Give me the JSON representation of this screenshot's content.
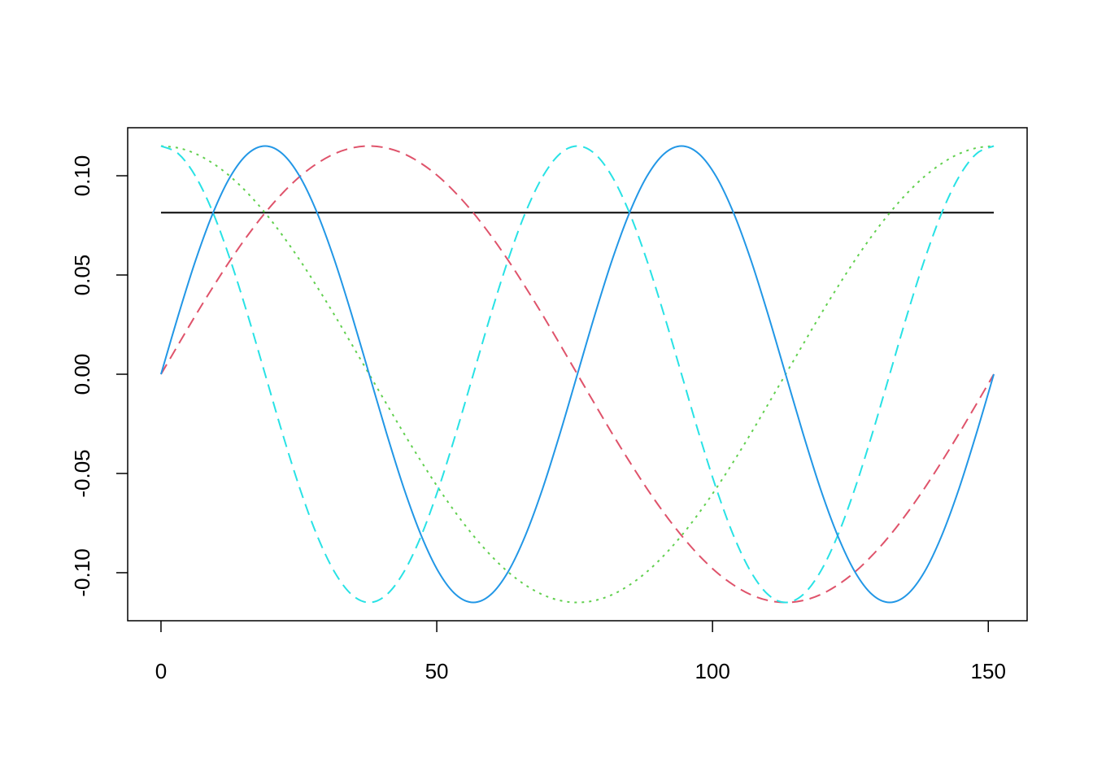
{
  "chart_data": {
    "type": "line",
    "x": [
      0,
      3.15,
      6.29,
      9.44,
      12.58,
      15.73,
      18.88,
      22.02,
      25.17,
      28.31,
      31.46,
      34.6,
      37.75,
      40.9,
      44.04,
      47.19,
      50.33,
      53.48,
      56.63,
      59.77,
      62.92,
      66.06,
      69.21,
      72.35,
      75.5,
      78.65,
      81.79,
      84.94,
      88.08,
      91.23,
      94.38,
      97.52,
      100.67,
      103.81,
      106.96,
      110.1,
      113.25,
      116.4,
      119.54,
      122.69,
      125.83,
      128.98,
      132.13,
      135.27,
      138.42,
      141.56,
      144.71,
      147.85,
      151
    ],
    "series": [
      {
        "color": "#000000",
        "dash": "solid",
        "values": [
          0.0814,
          0.0814,
          0.0814,
          0.0814,
          0.0814,
          0.0814,
          0.0814,
          0.0814,
          0.0814,
          0.0814,
          0.0814,
          0.0814,
          0.0814,
          0.0814,
          0.0814,
          0.0814,
          0.0814,
          0.0814,
          0.0814,
          0.0814,
          0.0814,
          0.0814,
          0.0814,
          0.0814,
          0.0814,
          0.0814,
          0.0814,
          0.0814,
          0.0814,
          0.0814,
          0.0814,
          0.0814,
          0.0814,
          0.0814,
          0.0814,
          0.0814,
          0.0814,
          0.0814,
          0.0814,
          0.0814,
          0.0814,
          0.0814,
          0.0814,
          0.0814,
          0.0814,
          0.0814,
          0.0814,
          0.0814,
          0.0814
        ]
      },
      {
        "color": "#DF536B",
        "dash": "dashed",
        "values": [
          0,
          0.015,
          0.0298,
          0.044,
          0.0575,
          0.07,
          0.0813,
          0.0912,
          0.0996,
          0.1062,
          0.1111,
          0.114,
          0.115,
          0.114,
          0.1111,
          0.1062,
          0.0996,
          0.0912,
          0.0813,
          0.07,
          0.0575,
          0.044,
          0.0298,
          0.015,
          0,
          -0.015,
          -0.0298,
          -0.044,
          -0.0575,
          -0.07,
          -0.0813,
          -0.0912,
          -0.0996,
          -0.1062,
          -0.1111,
          -0.114,
          -0.115,
          -0.114,
          -0.1111,
          -0.1062,
          -0.0996,
          -0.0912,
          -0.0813,
          -0.07,
          -0.0575,
          -0.044,
          -0.0298,
          -0.015,
          0
        ]
      },
      {
        "color": "#61D04F",
        "dash": "dotted",
        "values": [
          0.115,
          0.114,
          0.1111,
          0.1062,
          0.0996,
          0.0912,
          0.0813,
          0.07,
          0.0575,
          0.044,
          0.0298,
          0.015,
          0,
          -0.015,
          -0.0298,
          -0.044,
          -0.0575,
          -0.07,
          -0.0813,
          -0.0912,
          -0.0996,
          -0.1062,
          -0.1111,
          -0.114,
          -0.115,
          -0.114,
          -0.1111,
          -0.1062,
          -0.0996,
          -0.0912,
          -0.0813,
          -0.07,
          -0.0575,
          -0.044,
          -0.0298,
          -0.015,
          0,
          0.015,
          0.0298,
          0.044,
          0.0575,
          0.07,
          0.0813,
          0.0912,
          0.0996,
          0.1062,
          0.1111,
          0.114,
          0.115
        ]
      },
      {
        "color": "#28E2E5",
        "dash": "dashed",
        "values": [
          0.115,
          0.1111,
          0.0996,
          0.0813,
          0.0575,
          0.0298,
          0,
          -0.0298,
          -0.0575,
          -0.0813,
          -0.0996,
          -0.1111,
          -0.115,
          -0.1111,
          -0.0996,
          -0.0813,
          -0.0575,
          -0.0298,
          0,
          0.0298,
          0.0575,
          0.0813,
          0.0996,
          0.1111,
          0.115,
          0.1111,
          0.0996,
          0.0813,
          0.0575,
          0.0298,
          0,
          -0.0298,
          -0.0575,
          -0.0813,
          -0.0996,
          -0.1111,
          -0.115,
          -0.1111,
          -0.0996,
          -0.0813,
          -0.0575,
          -0.0298,
          0,
          0.0298,
          0.0575,
          0.0813,
          0.0996,
          0.1111,
          0.115
        ]
      },
      {
        "color": "#2297E6",
        "dash": "solid",
        "values": [
          0,
          0.0298,
          0.0575,
          0.0813,
          0.0996,
          0.1111,
          0.115,
          0.1111,
          0.0996,
          0.0813,
          0.0575,
          0.0298,
          0,
          -0.0298,
          -0.0575,
          -0.0813,
          -0.0996,
          -0.1111,
          -0.115,
          -0.1111,
          -0.0996,
          -0.0813,
          -0.0575,
          -0.0298,
          0,
          0.0298,
          0.0575,
          0.0813,
          0.0996,
          0.1111,
          0.115,
          0.1111,
          0.0996,
          0.0813,
          0.0575,
          0.0298,
          0,
          -0.0298,
          -0.0575,
          -0.0813,
          -0.0996,
          -0.1111,
          -0.115,
          -0.1111,
          -0.0996,
          -0.0813,
          -0.0575,
          -0.0298,
          0
        ]
      }
    ],
    "xlim": [
      -6.04,
      157.04
    ],
    "xticks": [
      0,
      50,
      100,
      150
    ],
    "ylim": [
      -0.1242,
      0.1242
    ],
    "yticks": [
      {
        "value": -0.1,
        "label": "-0.10"
      },
      {
        "value": -0.05,
        "label": "-0.05"
      },
      {
        "value": 0,
        "label": "0.00"
      },
      {
        "value": 0.05,
        "label": "0.05"
      },
      {
        "value": 0.1,
        "label": "0.10"
      }
    ],
    "grid": false
  }
}
